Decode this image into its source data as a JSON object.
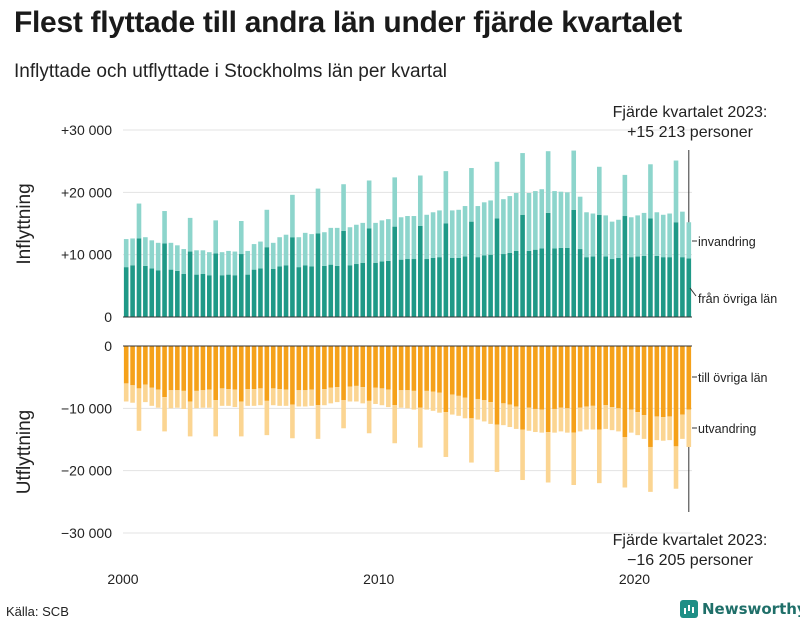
{
  "title": "Flest flyttade till andra län under fjärde kvartalet",
  "subtitle": "Inflyttade och utflyttade i Stockholms län per kvartal",
  "source": "Källa: SCB",
  "brand": "Newsworthy",
  "colors": {
    "in_domestic": "#1f9987",
    "in_immigration": "#8dd5cc",
    "out_domestic": "#f5a11a",
    "out_emigration": "#fbd592"
  },
  "chart_data": {
    "type": "bar",
    "stacked": true,
    "title": "Flest flyttade till andra län under fjärde kvartalet",
    "x_ticks": [
      "2000",
      "2010",
      "2020"
    ],
    "x_tick_positions": [
      2000,
      2010,
      2020
    ],
    "quarter_start": 2000.0,
    "upper_panel": {
      "ylabel": "Inflyttning",
      "ylim": [
        0,
        30000
      ],
      "y_ticks": [
        0,
        10000,
        20000,
        30000
      ],
      "y_tick_labels": [
        "0",
        "+10 000",
        "+20 000",
        "+30 000"
      ],
      "series_labels": [
        "från övriga län",
        "invandring"
      ],
      "annotation_line1": "Fjärde kvartalet 2023:",
      "annotation_line2": "+15 213 personer"
    },
    "lower_panel": {
      "ylabel": "Utflyttning",
      "ylim": [
        -30000,
        0
      ],
      "y_ticks": [
        0,
        -10000,
        -20000,
        -30000
      ],
      "y_tick_labels": [
        "0",
        "−10 000",
        "−20 000",
        "−30 000"
      ],
      "series_labels": [
        "till övriga län",
        "utvandring"
      ],
      "annotation_line1": "Fjärde kvartalet 2023:",
      "annotation_line2": "−16 205 personer"
    },
    "in_domestic": [
      8000,
      8300,
      12600,
      8200,
      7800,
      7500,
      11800,
      7600,
      7400,
      6900,
      10500,
      6800,
      6900,
      6700,
      10200,
      6700,
      6800,
      6700,
      10100,
      6800,
      7600,
      7800,
      11200,
      7700,
      8100,
      8300,
      12800,
      8000,
      8300,
      8100,
      13400,
      8200,
      8400,
      8200,
      13800,
      8300,
      8500,
      8700,
      14200,
      8700,
      8900,
      9000,
      14500,
      9200,
      9300,
      9300,
      14600,
      9300,
      9500,
      9600,
      15000,
      9500,
      9500,
      9700,
      15300,
      9600,
      9900,
      10000,
      15800,
      10100,
      10300,
      10600,
      16400,
      10600,
      10800,
      11000,
      16700,
      11000,
      11100,
      11100,
      17200,
      10900,
      9600,
      9700,
      16400,
      9700,
      9300,
      9500,
      16200,
      9600,
      9700,
      9800,
      15800,
      9800,
      9600,
      9600,
      15200,
      9600,
      9400
    ],
    "in_immigration": [
      4500,
      4300,
      5600,
      4600,
      4500,
      4400,
      5200,
      4300,
      4100,
      4000,
      5400,
      3900,
      3800,
      3700,
      5300,
      3700,
      3800,
      3800,
      5300,
      3800,
      4100,
      4300,
      6000,
      4200,
      4700,
      4900,
      6800,
      4800,
      5200,
      5200,
      7200,
      5400,
      5900,
      6100,
      7500,
      6100,
      6300,
      6400,
      7700,
      6400,
      6600,
      6700,
      7900,
      6800,
      6900,
      6900,
      8100,
      7100,
      7300,
      7500,
      8400,
      7600,
      7700,
      8100,
      8600,
      8200,
      8500,
      8700,
      9100,
      8800,
      9100,
      9300,
      9900,
      9300,
      9400,
      9500,
      9900,
      9200,
      9000,
      8900,
      9500,
      8400,
      7200,
      6900,
      7700,
      6600,
      6000,
      6100,
      6600,
      6400,
      6600,
      6900,
      8700,
      7000,
      6800,
      7000,
      9900,
      7300,
      5800
    ],
    "out_domestic": [
      -6000,
      -6300,
      -6800,
      -6200,
      -6700,
      -7000,
      -8200,
      -7100,
      -7100,
      -7200,
      -8900,
      -7200,
      -7100,
      -7000,
      -8700,
      -6800,
      -6900,
      -7000,
      -8900,
      -6900,
      -6900,
      -6800,
      -8800,
      -6800,
      -6900,
      -7000,
      -9400,
      -7100,
      -7100,
      -7000,
      -9500,
      -6900,
      -6700,
      -6600,
      -8700,
      -6500,
      -6400,
      -6600,
      -8800,
      -6700,
      -6800,
      -7000,
      -9500,
      -7100,
      -7100,
      -7200,
      -9900,
      -7200,
      -7300,
      -7500,
      -10600,
      -7800,
      -8000,
      -8300,
      -11600,
      -8500,
      -8700,
      -9000,
      -12600,
      -9200,
      -9400,
      -9700,
      -13400,
      -9900,
      -10100,
      -10200,
      -13800,
      -10100,
      -9900,
      -10000,
      -13900,
      -9900,
      -9700,
      -9600,
      -13400,
      -9500,
      -9800,
      -10000,
      -14600,
      -10200,
      -10600,
      -11100,
      -16200,
      -11300,
      -11400,
      -11300,
      -16100,
      -11000,
      -10200
    ],
    "out_emigration": [
      -2900,
      -2800,
      -6800,
      -2800,
      -2900,
      -2900,
      -5500,
      -2900,
      -2800,
      -2900,
      -5600,
      -2800,
      -2800,
      -2900,
      -5800,
      -2800,
      -2700,
      -2800,
      -5600,
      -2700,
      -2700,
      -2700,
      -5500,
      -2700,
      -2700,
      -2600,
      -5400,
      -2600,
      -2600,
      -2600,
      -5400,
      -2600,
      -2500,
      -2400,
      -4500,
      -2400,
      -2500,
      -2600,
      -5200,
      -2600,
      -2700,
      -2800,
      -6100,
      -2800,
      -2900,
      -3000,
      -6400,
      -3000,
      -3100,
      -3200,
      -7200,
      -3200,
      -3200,
      -3300,
      -7100,
      -3300,
      -3400,
      -3500,
      -7600,
      -3500,
      -3600,
      -3600,
      -8100,
      -3700,
      -3700,
      -3700,
      -8100,
      -3800,
      -3800,
      -3900,
      -8400,
      -3800,
      -3700,
      -3800,
      -8600,
      -3800,
      -3700,
      -3700,
      -8100,
      -3700,
      -3700,
      -3800,
      -7200,
      -3800,
      -3800,
      -3800,
      -6800,
      -3900,
      -6000
    ]
  }
}
